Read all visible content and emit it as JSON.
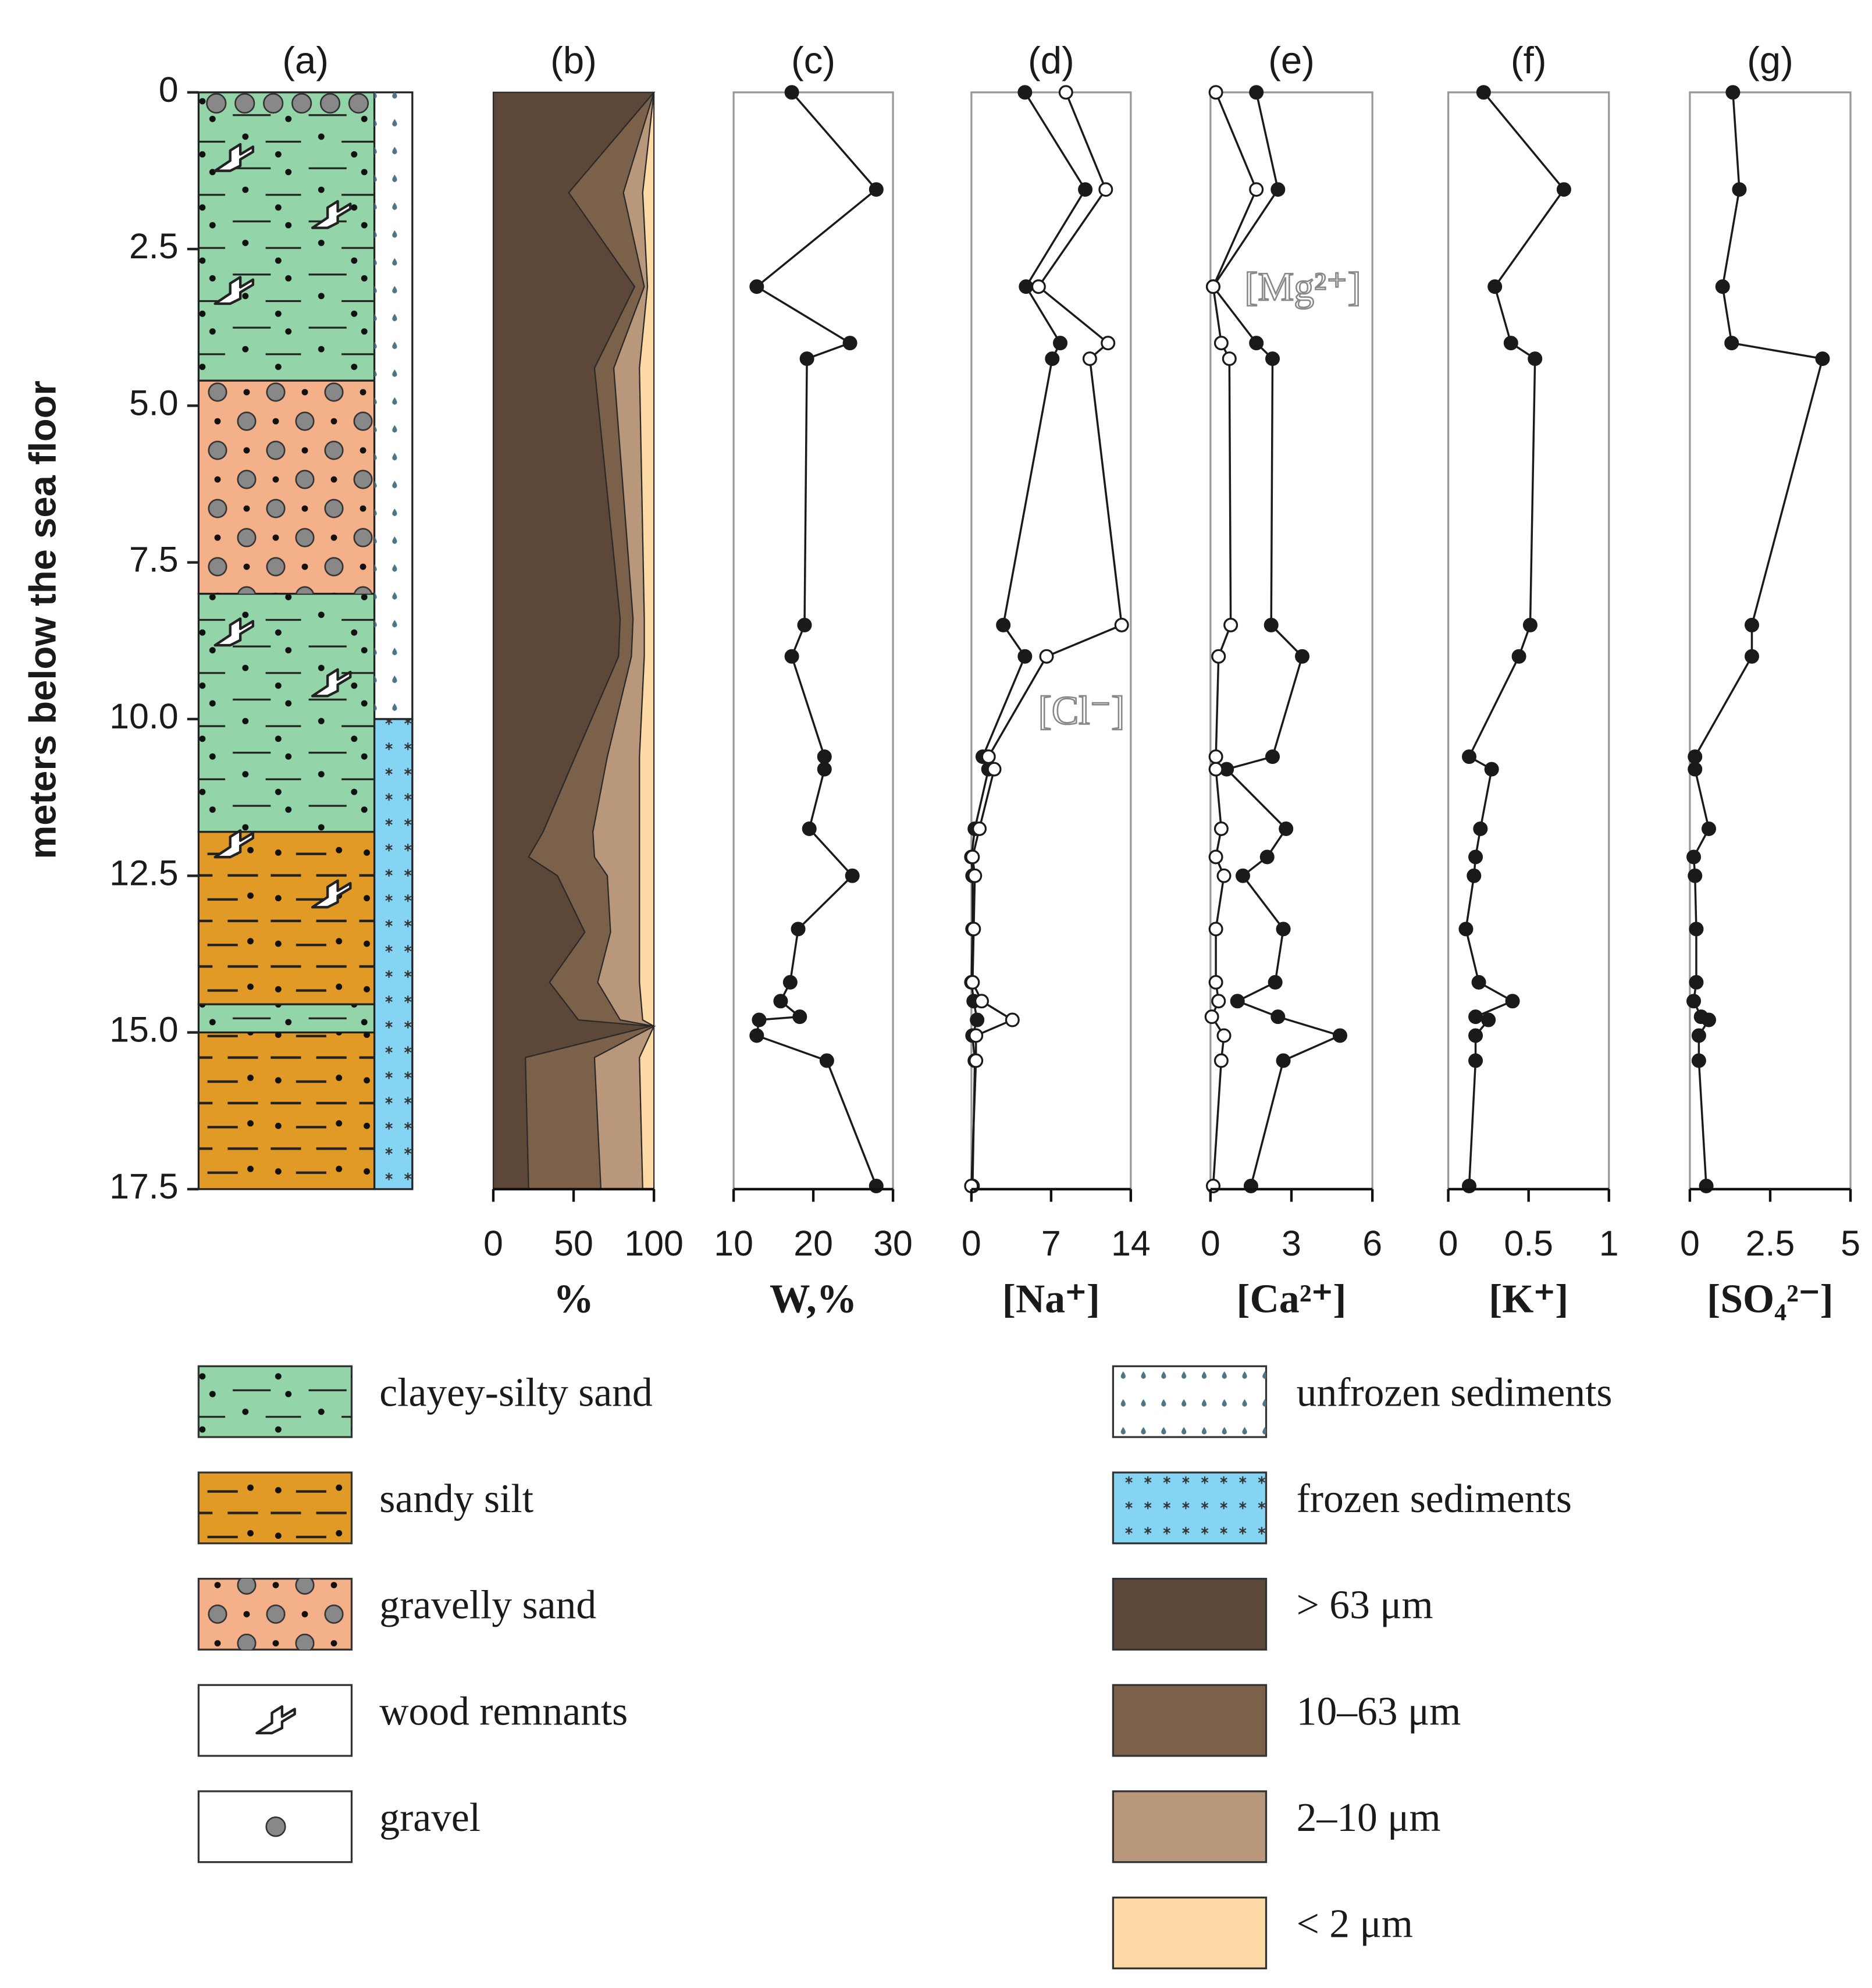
{
  "chart_data": [
    {
      "type": "lithology",
      "title": "(a)",
      "ylabel": "meters below the sea floor",
      "ylim": [
        0,
        17.5
      ],
      "yticks": [
        0,
        2.5,
        {
          "value": 5,
          "label": "5.0"
        },
        7.5,
        {
          "value": 10,
          "label": "10.0"
        },
        12.5,
        {
          "value": 15,
          "label": "15.0"
        },
        17.5
      ],
      "units": [
        {
          "name": "clayey-silty sand",
          "color": "#93d5a8",
          "intervals": [
            [
              0,
              4.6
            ],
            [
              8,
              11.8
            ],
            [
              14.55,
              15
            ]
          ]
        },
        {
          "name": "sandy silt",
          "color": "#e29a26",
          "intervals": [
            [
              11.8,
              14.55
            ],
            [
              15,
              17.5
            ]
          ]
        },
        {
          "name": "gravelly sand",
          "color": "#f4b088",
          "intervals": [
            [
              4.6,
              8
            ]
          ]
        }
      ],
      "wood": {
        "name": "wood remnants",
        "depths": [
          1.05,
          1.96,
          3.17,
          8.62,
          9.43,
          12.0,
          12.8
        ]
      },
      "gravel": {
        "name": "gravel",
        "intervals": [
          [
            0,
            0.35
          ]
        ]
      },
      "state": [
        {
          "name": "unfrozen sediments",
          "color": "#ffffff",
          "intervals": [
            [
              0,
              10
            ]
          ]
        },
        {
          "name": "frozen sediments",
          "color": "#86d4f4",
          "intervals": [
            [
              10,
              17.5
            ]
          ]
        }
      ]
    },
    {
      "type": "stacked_area",
      "title": "(b)",
      "xlabel": "%",
      "xlim": [
        0,
        100
      ],
      "xticks": [
        0,
        50,
        100
      ],
      "y": [
        0,
        1.6,
        3.1,
        4.4,
        8.4,
        9.0,
        10.6,
        11.8,
        12.2,
        12.5,
        13.4,
        14.2,
        14.8,
        14.9,
        15.4,
        17.5
      ],
      "series": [
        {
          "name": "> 63 μm",
          "color": "#5d4739",
          "values": [
            100,
            47,
            88,
            63,
            79,
            78,
            51,
            31,
            22,
            40,
            57,
            35,
            53,
            98,
            20,
            22
          ]
        },
        {
          "name": "10–63 μm",
          "color": "#7b614a",
          "values": [
            0,
            34,
            6,
            12,
            8,
            8,
            20,
            31,
            41,
            31,
            16,
            30,
            26,
            2,
            43,
            45
          ]
        },
        {
          "name": "2–10 μm",
          "color": "#b9977a",
          "values": [
            0,
            12,
            2,
            16,
            7,
            8,
            20,
            29,
            28,
            20,
            18,
            26,
            14,
            0,
            28,
            26
          ]
        },
        {
          "name": "< 2 μm",
          "color": "#fdd9a6",
          "values": [
            0,
            7,
            4,
            9,
            6,
            6,
            9,
            9,
            9,
            9,
            9,
            9,
            7,
            0,
            9,
            7
          ]
        }
      ]
    },
    {
      "type": "line",
      "title": "(c)",
      "xlabel": "W,%",
      "xlim": [
        10,
        30
      ],
      "xticks": [
        10,
        20,
        30
      ],
      "y": [
        0,
        1.55,
        3.1,
        4.0,
        4.25,
        8.5,
        9.0,
        10.6,
        10.8,
        11.75,
        12.5,
        13.35,
        14.2,
        14.5,
        14.75,
        14.8,
        15.05,
        15.45,
        17.45
      ],
      "series": [
        {
          "color": "#1a1a1a",
          "marker": "filled",
          "values": [
            17.3,
            27.9,
            12.9,
            24.6,
            19.2,
            18.9,
            17.3,
            21.4,
            21.4,
            19.5,
            24.9,
            18.1,
            17.1,
            15.9,
            18.3,
            13.2,
            12.9,
            21.7,
            27.9
          ]
        }
      ]
    },
    {
      "type": "line",
      "title": "(d)",
      "xlabel": "[Na⁺]",
      "xlim": [
        0,
        14
      ],
      "xticks": [
        0,
        7,
        14
      ],
      "y": [
        0,
        1.55,
        3.1,
        4.0,
        4.25,
        8.5,
        9.0,
        10.6,
        10.8,
        11.75,
        12.2,
        12.5,
        13.35,
        14.2,
        14.5,
        14.8,
        15.05,
        15.45,
        17.45
      ],
      "series": [
        {
          "color": "#1a1a1a",
          "marker": "filled",
          "values": [
            4.7,
            10.0,
            4.8,
            7.8,
            7.1,
            2.8,
            4.7,
            1.0,
            1.5,
            0.3,
            0.0,
            0.1,
            0.1,
            0.0,
            0.2,
            0.5,
            0.1,
            0.3,
            0.1
          ]
        },
        {
          "name": "[Cl⁻]",
          "color": "#1a1a1a",
          "marker": "open",
          "values": [
            8.3,
            11.8,
            5.9,
            12.0,
            10.4,
            13.2,
            6.6,
            1.5,
            2.0,
            0.7,
            0.1,
            0.3,
            0.2,
            0.1,
            0.9,
            3.6,
            0.4,
            0.4,
            0.0
          ]
        }
      ]
    },
    {
      "type": "line",
      "title": "(e)",
      "xlabel": "[Ca²⁺]",
      "xlim": [
        0,
        6
      ],
      "xticks": [
        0,
        3,
        6
      ],
      "y": [
        0,
        1.55,
        3.1,
        4.0,
        4.25,
        8.5,
        9.0,
        10.6,
        10.8,
        11.75,
        12.2,
        12.5,
        13.35,
        14.2,
        14.5,
        14.75,
        15.05,
        15.45,
        17.45
      ],
      "series": [
        {
          "color": "#1a1a1a",
          "marker": "filled",
          "values": [
            1.7,
            2.5,
            0.1,
            1.7,
            2.3,
            2.25,
            3.4,
            2.3,
            0.6,
            2.8,
            2.1,
            1.2,
            2.7,
            2.4,
            1.0,
            2.5,
            4.8,
            2.7,
            1.5
          ]
        },
        {
          "name": "[Mg²⁺]",
          "color": "#1a1a1a",
          "marker": "open",
          "values": [
            0.2,
            1.7,
            0.1,
            0.4,
            0.7,
            0.75,
            0.3,
            0.2,
            0.2,
            0.4,
            0.2,
            0.5,
            0.2,
            0.2,
            0.3,
            0.05,
            0.5,
            0.4,
            0.1
          ]
        }
      ]
    },
    {
      "type": "line",
      "title": "(f)",
      "xlabel": "[K⁺]",
      "xlim": [
        0,
        1
      ],
      "xticks": [
        0,
        0.5,
        1
      ],
      "y": [
        0,
        1.55,
        3.1,
        4.0,
        4.25,
        8.5,
        9.0,
        10.6,
        10.8,
        11.75,
        12.2,
        12.5,
        13.35,
        14.2,
        14.5,
        14.75,
        14.8,
        15.05,
        15.45,
        17.45
      ],
      "series": [
        {
          "color": "#1a1a1a",
          "marker": "filled",
          "values": [
            0.22,
            0.72,
            0.29,
            0.39,
            0.54,
            0.51,
            0.44,
            0.13,
            0.27,
            0.2,
            0.17,
            0.16,
            0.11,
            0.19,
            0.4,
            0.17,
            0.25,
            0.17,
            0.17,
            0.13
          ]
        }
      ]
    },
    {
      "type": "line",
      "title": "(g)",
      "xlabel": "[SO₄²⁻]",
      "xlim": [
        0,
        5
      ],
      "xticks": [
        0,
        2.5,
        5
      ],
      "y": [
        0,
        1.55,
        3.1,
        4.0,
        4.25,
        8.5,
        9.0,
        10.6,
        10.8,
        11.75,
        12.2,
        12.5,
        13.35,
        14.2,
        14.5,
        14.75,
        14.8,
        15.05,
        15.45,
        17.45
      ],
      "series": [
        {
          "color": "#1a1a1a",
          "marker": "filled",
          "values": [
            1.34,
            1.54,
            1.02,
            1.3,
            4.13,
            1.93,
            1.93,
            0.16,
            0.16,
            0.59,
            0.12,
            0.16,
            0.2,
            0.2,
            0.12,
            0.35,
            0.59,
            0.28,
            0.28,
            0.51
          ]
        }
      ]
    }
  ]
}
